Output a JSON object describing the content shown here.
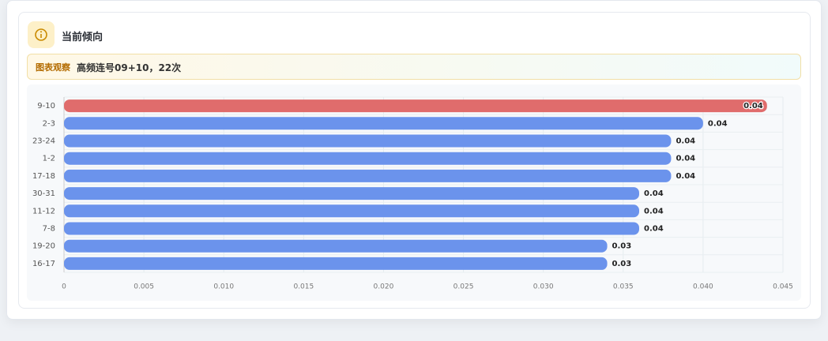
{
  "header": {
    "title": "当前倾向"
  },
  "observation": {
    "badge": "图表观察",
    "text": "高频连号09+10，22次"
  },
  "chart_data": {
    "type": "bar",
    "orientation": "horizontal",
    "categories": [
      "9-10",
      "2-3",
      "23-24",
      "1-2",
      "17-18",
      "30-31",
      "11-12",
      "7-8",
      "19-20",
      "16-17"
    ],
    "values": [
      0.044,
      0.04,
      0.038,
      0.038,
      0.038,
      0.036,
      0.036,
      0.036,
      0.034,
      0.034
    ],
    "value_labels": [
      "0.04",
      "0.04",
      "0.04",
      "0.04",
      "0.04",
      "0.04",
      "0.04",
      "0.04",
      "0.03",
      "0.03"
    ],
    "colors": [
      "#e06c6c",
      "#6b93ec",
      "#6b93ec",
      "#6b93ec",
      "#6b93ec",
      "#6b93ec",
      "#6b93ec",
      "#6b93ec",
      "#6b93ec",
      "#6b93ec"
    ],
    "xlim": [
      0,
      0.045
    ],
    "xticks": [
      0,
      0.005,
      {
        "value": 0.01,
        "label": "0.010"
      },
      0.015,
      {
        "value": 0.02,
        "label": "0.020"
      },
      0.025,
      {
        "value": 0.03,
        "label": "0.030"
      },
      0.035,
      {
        "value": 0.04,
        "label": "0.040"
      },
      0.045
    ],
    "grid": true
  }
}
